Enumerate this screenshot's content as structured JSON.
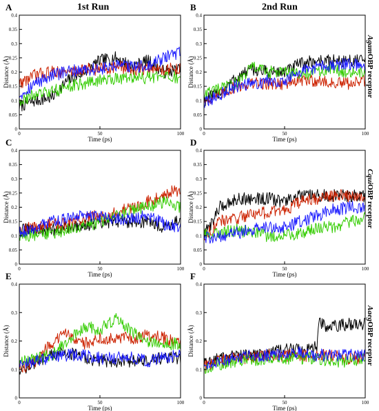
{
  "columns": [
    "1st Run",
    "2nd Run"
  ],
  "rows": [
    {
      "italic": "Agam",
      "rest": "OBP receptor"
    },
    {
      "italic": "Cqui",
      "rest": "OBP receptor"
    },
    {
      "italic": "Aaeg",
      "rest": "OBP receptor"
    }
  ],
  "colors": {
    "black": "#000000",
    "red": "#cc2200",
    "green": "#33cc00",
    "blue": "#1a1aff"
  },
  "chart_data": [
    {
      "type": "line",
      "panel": "A",
      "xlabel": "Time (ps)",
      "ylabel": "Distance (Å)",
      "xlim": [
        0,
        100
      ],
      "ylim": [
        0,
        0.4
      ],
      "xticks": [
        "0",
        "50",
        "100"
      ],
      "yticks": [
        "0",
        "0.05",
        "0.1",
        "0.15",
        "0.2",
        "0.25",
        "0.3",
        "0.35",
        "0.4"
      ],
      "series": [
        {
          "color": "#000000",
          "x": [
            0,
            10,
            20,
            30,
            40,
            50,
            60,
            70,
            80,
            90,
            100
          ],
          "y": [
            0.08,
            0.1,
            0.11,
            0.17,
            0.2,
            0.24,
            0.25,
            0.22,
            0.24,
            0.2,
            0.21
          ]
        },
        {
          "color": "#cc2200",
          "x": [
            0,
            10,
            20,
            30,
            40,
            50,
            60,
            70,
            80,
            90,
            100
          ],
          "y": [
            0.16,
            0.19,
            0.2,
            0.2,
            0.21,
            0.21,
            0.22,
            0.21,
            0.21,
            0.21,
            0.21
          ]
        },
        {
          "color": "#33cc00",
          "x": [
            0,
            10,
            20,
            30,
            40,
            50,
            60,
            70,
            80,
            90,
            100
          ],
          "y": [
            0.1,
            0.12,
            0.13,
            0.15,
            0.16,
            0.17,
            0.18,
            0.18,
            0.18,
            0.18,
            0.18
          ]
        },
        {
          "color": "#1a1aff",
          "x": [
            0,
            10,
            20,
            30,
            40,
            50,
            60,
            70,
            80,
            90,
            100
          ],
          "y": [
            0.12,
            0.16,
            0.19,
            0.2,
            0.21,
            0.21,
            0.22,
            0.22,
            0.22,
            0.25,
            0.27
          ]
        }
      ]
    },
    {
      "type": "line",
      "panel": "B",
      "xlabel": "Time (ps)",
      "ylabel": "Distance (Å)",
      "xlim": [
        0,
        100
      ],
      "ylim": [
        0,
        0.4
      ],
      "xticks": [
        "0",
        "50",
        "100"
      ],
      "yticks": [
        "0",
        "0.05",
        "0.1",
        "0.15",
        "0.2",
        "0.25",
        "0.3",
        "0.35",
        "0.4"
      ],
      "series": [
        {
          "color": "#000000",
          "x": [
            0,
            10,
            20,
            30,
            40,
            50,
            60,
            70,
            80,
            90,
            100
          ],
          "y": [
            0.1,
            0.13,
            0.18,
            0.21,
            0.2,
            0.2,
            0.23,
            0.24,
            0.24,
            0.24,
            0.24
          ]
        },
        {
          "color": "#cc2200",
          "x": [
            0,
            10,
            20,
            30,
            40,
            50,
            60,
            70,
            80,
            90,
            100
          ],
          "y": [
            0.1,
            0.12,
            0.15,
            0.16,
            0.16,
            0.16,
            0.17,
            0.17,
            0.16,
            0.16,
            0.17
          ]
        },
        {
          "color": "#33cc00",
          "x": [
            0,
            10,
            20,
            30,
            40,
            50,
            60,
            70,
            80,
            90,
            100
          ],
          "y": [
            0.12,
            0.14,
            0.16,
            0.22,
            0.2,
            0.2,
            0.19,
            0.2,
            0.21,
            0.2,
            0.2
          ]
        },
        {
          "color": "#1a1aff",
          "x": [
            0,
            10,
            20,
            30,
            40,
            50,
            60,
            70,
            80,
            90,
            100
          ],
          "y": [
            0.09,
            0.12,
            0.15,
            0.16,
            0.17,
            0.17,
            0.2,
            0.22,
            0.22,
            0.23,
            0.22
          ]
        }
      ]
    },
    {
      "type": "line",
      "panel": "C",
      "xlabel": "Time (ps)",
      "ylabel": "Distance (Å)",
      "xlim": [
        0,
        100
      ],
      "ylim": [
        0,
        0.4
      ],
      "xticks": [
        "0",
        "50",
        "100"
      ],
      "yticks": [
        "0",
        "0.05",
        "0.1",
        "0.15",
        "0.2",
        "0.25",
        "0.3",
        "0.35",
        "0.4"
      ],
      "series": [
        {
          "color": "#000000",
          "x": [
            0,
            10,
            20,
            30,
            40,
            50,
            60,
            70,
            80,
            90,
            100
          ],
          "y": [
            0.12,
            0.12,
            0.12,
            0.13,
            0.14,
            0.14,
            0.15,
            0.15,
            0.15,
            0.13,
            0.16
          ]
        },
        {
          "color": "#cc2200",
          "x": [
            0,
            10,
            20,
            30,
            40,
            50,
            60,
            70,
            80,
            90,
            100
          ],
          "y": [
            0.12,
            0.13,
            0.14,
            0.14,
            0.16,
            0.17,
            0.18,
            0.2,
            0.22,
            0.25,
            0.26
          ]
        },
        {
          "color": "#33cc00",
          "x": [
            0,
            10,
            20,
            30,
            40,
            50,
            60,
            70,
            80,
            90,
            100
          ],
          "y": [
            0.1,
            0.1,
            0.11,
            0.12,
            0.13,
            0.15,
            0.17,
            0.19,
            0.2,
            0.22,
            0.2
          ]
        },
        {
          "color": "#1a1aff",
          "x": [
            0,
            10,
            20,
            30,
            40,
            50,
            60,
            70,
            80,
            90,
            100
          ],
          "y": [
            0.11,
            0.13,
            0.15,
            0.16,
            0.17,
            0.17,
            0.16,
            0.16,
            0.17,
            0.14,
            0.13
          ]
        }
      ]
    },
    {
      "type": "line",
      "panel": "D",
      "xlabel": "Time (ps)",
      "ylabel": "Distance (Å)",
      "xlim": [
        0,
        100
      ],
      "ylim": [
        0,
        0.4
      ],
      "xticks": [
        "0",
        "50",
        "100"
      ],
      "yticks": [
        "0",
        "0.05",
        "0.1",
        "0.15",
        "0.2",
        "0.25",
        "0.3",
        "0.35",
        "0.4"
      ],
      "series": [
        {
          "color": "#000000",
          "x": [
            0,
            10,
            20,
            30,
            40,
            50,
            60,
            70,
            80,
            90,
            100
          ],
          "y": [
            0.1,
            0.2,
            0.23,
            0.23,
            0.23,
            0.22,
            0.24,
            0.24,
            0.24,
            0.24,
            0.24
          ]
        },
        {
          "color": "#cc2200",
          "x": [
            0,
            10,
            20,
            30,
            40,
            50,
            60,
            70,
            80,
            90,
            100
          ],
          "y": [
            0.1,
            0.15,
            0.16,
            0.18,
            0.18,
            0.19,
            0.22,
            0.23,
            0.24,
            0.24,
            0.24
          ]
        },
        {
          "color": "#33cc00",
          "x": [
            0,
            10,
            20,
            30,
            40,
            50,
            60,
            70,
            80,
            90,
            100
          ],
          "y": [
            0.1,
            0.11,
            0.12,
            0.11,
            0.1,
            0.1,
            0.11,
            0.13,
            0.13,
            0.15,
            0.16
          ]
        },
        {
          "color": "#1a1aff",
          "x": [
            0,
            10,
            20,
            30,
            40,
            50,
            60,
            70,
            80,
            90,
            100
          ],
          "y": [
            0.09,
            0.1,
            0.11,
            0.12,
            0.13,
            0.13,
            0.15,
            0.17,
            0.19,
            0.2,
            0.2
          ]
        }
      ]
    },
    {
      "type": "line",
      "panel": "E",
      "xlabel": "Time (ps)",
      "ylabel": "Distance (Å)",
      "xlim": [
        0,
        100
      ],
      "ylim": [
        0,
        0.4
      ],
      "xticks": [
        "0",
        "50",
        "100"
      ],
      "yticks": [
        "0",
        "0.1",
        "0.2",
        "0.3",
        "0.4"
      ],
      "series": [
        {
          "color": "#000000",
          "x": [
            0,
            10,
            20,
            30,
            40,
            50,
            60,
            70,
            80,
            90,
            100
          ],
          "y": [
            0.1,
            0.12,
            0.15,
            0.16,
            0.14,
            0.13,
            0.13,
            0.13,
            0.13,
            0.14,
            0.14
          ]
        },
        {
          "color": "#cc2200",
          "x": [
            0,
            10,
            20,
            30,
            40,
            50,
            60,
            70,
            80,
            90,
            100
          ],
          "y": [
            0.1,
            0.13,
            0.19,
            0.23,
            0.19,
            0.21,
            0.21,
            0.21,
            0.22,
            0.21,
            0.19
          ]
        },
        {
          "color": "#33cc00",
          "x": [
            0,
            10,
            20,
            30,
            40,
            50,
            60,
            70,
            80,
            90,
            100
          ],
          "y": [
            0.12,
            0.14,
            0.15,
            0.2,
            0.25,
            0.24,
            0.28,
            0.23,
            0.2,
            0.19,
            0.19
          ]
        },
        {
          "color": "#1a1aff",
          "x": [
            0,
            10,
            20,
            30,
            40,
            50,
            60,
            70,
            80,
            90,
            100
          ],
          "y": [
            0.11,
            0.13,
            0.14,
            0.15,
            0.15,
            0.14,
            0.14,
            0.14,
            0.13,
            0.14,
            0.15
          ]
        }
      ]
    },
    {
      "type": "line",
      "panel": "F",
      "xlabel": "Time (ps)",
      "ylabel": "Distance (Å)",
      "xlim": [
        0,
        100
      ],
      "ylim": [
        0,
        0.4
      ],
      "xticks": [
        "0",
        "50",
        "100"
      ],
      "yticks": [
        "0",
        "0.1",
        "0.2",
        "0.3",
        "0.4"
      ],
      "series": [
        {
          "color": "#000000",
          "x": [
            0,
            10,
            20,
            30,
            40,
            50,
            60,
            70,
            71,
            80,
            90,
            100
          ],
          "y": [
            0.12,
            0.14,
            0.15,
            0.15,
            0.16,
            0.17,
            0.17,
            0.18,
            0.26,
            0.25,
            0.26,
            0.26
          ]
        },
        {
          "color": "#cc2200",
          "x": [
            0,
            10,
            20,
            30,
            40,
            50,
            60,
            70,
            80,
            90,
            100
          ],
          "y": [
            0.11,
            0.13,
            0.14,
            0.14,
            0.15,
            0.15,
            0.15,
            0.15,
            0.15,
            0.14,
            0.14
          ]
        },
        {
          "color": "#33cc00",
          "x": [
            0,
            10,
            20,
            30,
            40,
            50,
            60,
            70,
            80,
            90,
            100
          ],
          "y": [
            0.1,
            0.12,
            0.13,
            0.13,
            0.14,
            0.14,
            0.14,
            0.14,
            0.13,
            0.13,
            0.14
          ]
        },
        {
          "color": "#1a1aff",
          "x": [
            0,
            10,
            20,
            30,
            40,
            50,
            60,
            70,
            80,
            90,
            100
          ],
          "y": [
            0.12,
            0.13,
            0.14,
            0.15,
            0.15,
            0.15,
            0.16,
            0.15,
            0.15,
            0.15,
            0.15
          ]
        }
      ]
    }
  ]
}
